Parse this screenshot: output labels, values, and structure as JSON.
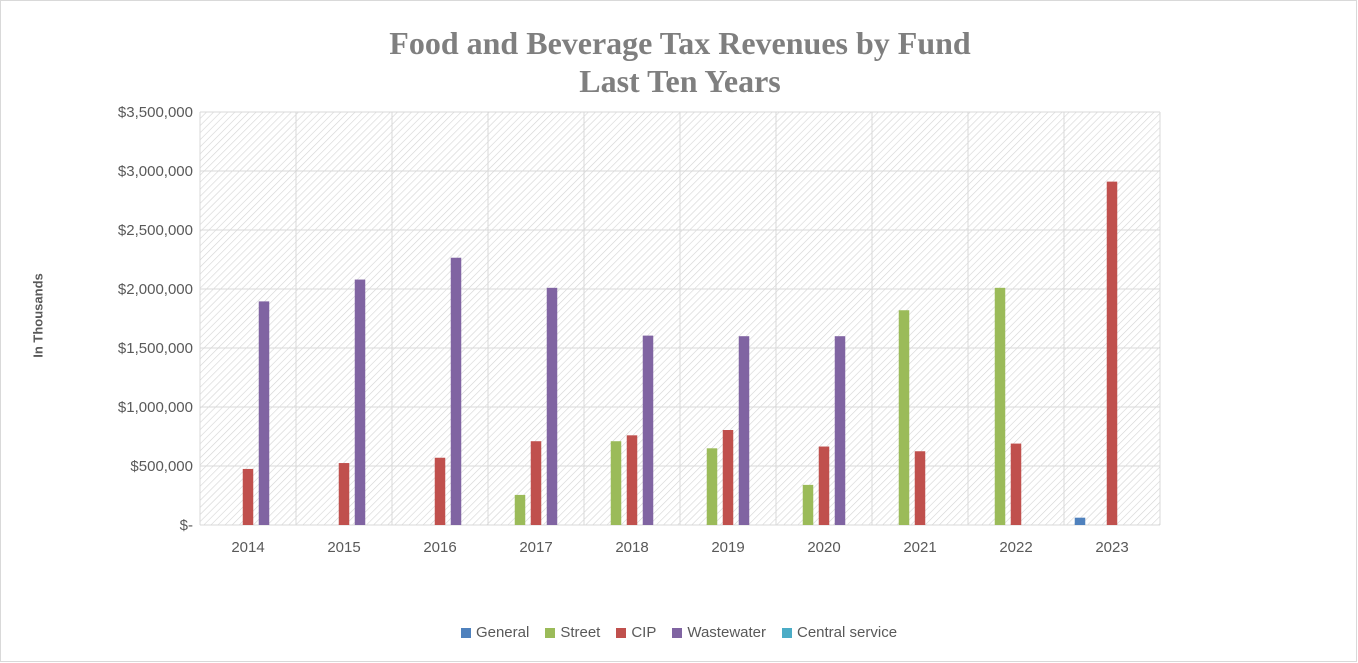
{
  "chart_data": {
    "type": "bar",
    "title_line1": "Food and Beverage Tax Revenues by Fund",
    "title_line2": "Last Ten Years",
    "xlabel": "",
    "ylabel": "In Thousands",
    "ylim": [
      0,
      3500000
    ],
    "yticks": [
      0,
      500000,
      1000000,
      1500000,
      2000000,
      2500000,
      3000000,
      3500000
    ],
    "ytick_labels": [
      "$-",
      "$500,000",
      "$1,000,000",
      "$1,500,000",
      "$2,000,000",
      "$2,500,000",
      "$3,000,000",
      "$3,500,000"
    ],
    "categories": [
      "2014",
      "2015",
      "2016",
      "2017",
      "2018",
      "2019",
      "2020",
      "2021",
      "2022",
      "2023"
    ],
    "series": [
      {
        "name": "General",
        "color": "#4f81bd",
        "values": [
          0,
          0,
          0,
          0,
          0,
          0,
          0,
          0,
          0,
          62000
        ]
      },
      {
        "name": "Street",
        "color": "#9bbb59",
        "values": [
          0,
          0,
          0,
          255000,
          710000,
          650000,
          340000,
          1820000,
          2010000,
          0
        ]
      },
      {
        "name": "CIP",
        "color": "#c0504d",
        "values": [
          475000,
          525000,
          570000,
          710000,
          760000,
          805000,
          665000,
          625000,
          690000,
          2910000
        ]
      },
      {
        "name": "Wastewater",
        "color": "#8064a2",
        "values": [
          1895000,
          2080000,
          2265000,
          2010000,
          1605000,
          1600000,
          1600000,
          0,
          0,
          0
        ]
      },
      {
        "name": "Central service",
        "color": "#4bacc6",
        "values": [
          0,
          0,
          0,
          0,
          0,
          0,
          0,
          0,
          0,
          0
        ]
      }
    ],
    "grid": true,
    "legend_position": "bottom"
  }
}
